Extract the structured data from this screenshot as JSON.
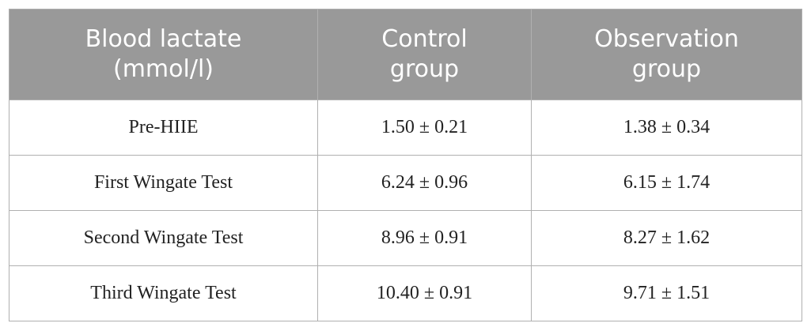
{
  "table": {
    "header": [
      "Blood lactate (mmol/l)",
      "Control group",
      "Observation group"
    ],
    "rows": [
      [
        "Pre-HIIE",
        "1.50 ± 0.21",
        "1.38 ± 0.34"
      ],
      [
        "First Wingate Test",
        "6.24 ± 0.96",
        "6.15 ± 1.74"
      ],
      [
        "Second Wingate Test",
        "8.96 ± 0.91",
        "8.27 ± 1.62"
      ],
      [
        "Third Wingate Test",
        "10.40 ± 0.91",
        "9.71 ± 1.51"
      ]
    ]
  }
}
